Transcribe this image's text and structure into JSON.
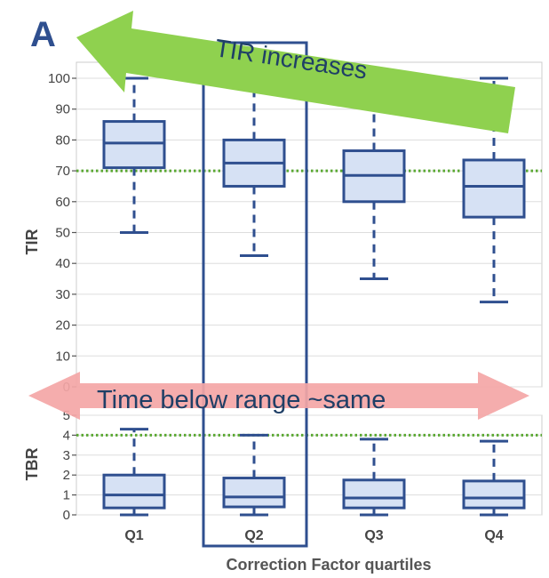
{
  "panel_label": "A",
  "colors": {
    "box_stroke": "#2f4f8f",
    "box_fill": "#d6e1f4",
    "threshold_line": "#5aa832",
    "green_arrow": "#8fd14f",
    "red_arrow": "#f4a6a6",
    "grid": "#dddddd"
  },
  "annotations": {
    "top_arrow_text": "TIR increases",
    "mid_arrow_text": "Time below range ~same"
  },
  "chart_data": [
    {
      "type": "box",
      "ylabel": "TIR",
      "ylim": [
        0,
        100
      ],
      "yticks": [
        0,
        10,
        20,
        30,
        40,
        50,
        60,
        70,
        80,
        90,
        100
      ],
      "threshold": 70,
      "grid": true,
      "categories": [
        "Q1",
        "Q2",
        "Q3",
        "Q4"
      ],
      "boxes": [
        {
          "min": 50,
          "q1": 71,
          "median": 79,
          "q3": 86,
          "max": 100
        },
        {
          "min": 42.5,
          "q1": 65,
          "median": 72.5,
          "q3": 80,
          "max": 100
        },
        {
          "min": 35,
          "q1": 60,
          "median": 68.5,
          "q3": 76.5,
          "max": 100
        },
        {
          "min": 27.5,
          "q1": 55,
          "median": 65,
          "q3": 73.5,
          "max": 100
        }
      ]
    },
    {
      "type": "box",
      "ylabel": "TBR",
      "xlabel": "Correction Factor quartiles",
      "ylim": [
        0,
        5
      ],
      "yticks": [
        0,
        1,
        2,
        3,
        4,
        5
      ],
      "threshold": 4,
      "grid": true,
      "categories": [
        "Q1",
        "Q2",
        "Q3",
        "Q4"
      ],
      "boxes": [
        {
          "min": 0,
          "q1": 0.35,
          "median": 1.0,
          "q3": 2.0,
          "max": 4.3
        },
        {
          "min": 0,
          "q1": 0.4,
          "median": 0.9,
          "q3": 1.85,
          "max": 4.0
        },
        {
          "min": 0,
          "q1": 0.35,
          "median": 0.85,
          "q3": 1.75,
          "max": 3.8
        },
        {
          "min": 0,
          "q1": 0.35,
          "median": 0.85,
          "q3": 1.7,
          "max": 3.7
        }
      ]
    }
  ]
}
